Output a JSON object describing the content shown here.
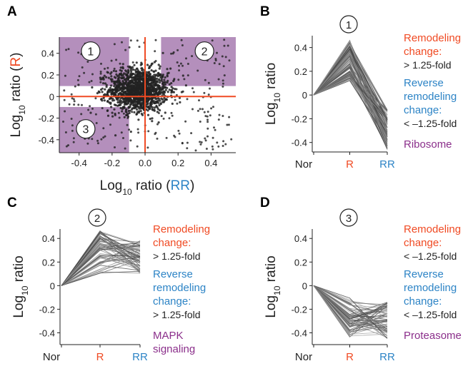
{
  "colors": {
    "red": "#f04a23",
    "blue": "#2d84c6",
    "purple": "#8b2f8b",
    "shade": "#a77bb0",
    "line": "#333333",
    "point": "#222222"
  },
  "chart_data": [
    {
      "panel": "A",
      "type": "scatter",
      "xlabel_prefix": "Log",
      "xlabel_sub": "10",
      "xlabel_ratio": " ratio (",
      "xlabel_key": "RR",
      "xlabel_close": ")",
      "ylabel_prefix": "Log",
      "ylabel_sub": "10",
      "ylabel_ratio": " ratio (",
      "ylabel_key": "R",
      "ylabel_close": ")",
      "xlim": [
        -0.52,
        0.55
      ],
      "ylim": [
        -0.52,
        0.55
      ],
      "xticks": [
        "-0.4",
        "-0.2",
        "0.0",
        "0.2",
        "0.4"
      ],
      "yticks": [
        "0.4",
        "0.2",
        "0",
        "-0.2",
        "-0.4"
      ],
      "xtick_values": [
        -0.4,
        -0.2,
        0.0,
        0.2,
        0.4
      ],
      "ytick_values": [
        0.4,
        0.2,
        0,
        -0.2,
        -0.4
      ],
      "thresholds": [
        -0.097,
        0.097
      ],
      "regions": [
        {
          "label": "1",
          "x": [
            -0.52,
            -0.097
          ],
          "y": [
            0.097,
            0.55
          ]
        },
        {
          "label": "2",
          "x": [
            0.097,
            0.55
          ],
          "y": [
            0.097,
            0.55
          ]
        },
        {
          "label": "3",
          "x": [
            -0.52,
            -0.097
          ],
          "y": [
            -0.52,
            -0.097
          ]
        }
      ],
      "region_labels": [
        "1",
        "2",
        "3"
      ],
      "region_label_pos": [
        [
          -0.33,
          0.42
        ],
        [
          0.36,
          0.42
        ],
        [
          -0.36,
          -0.3
        ]
      ],
      "cluster_count": 1400,
      "outer_count": 260,
      "cluster_sigma": [
        0.09,
        0.1
      ]
    },
    {
      "panel": "B",
      "type": "line",
      "region": "1",
      "categories": [
        "Nor",
        "R",
        "RR"
      ],
      "ylabel_prefix": "Log",
      "ylabel_sub": "10",
      "ylabel_ratio": " ratio",
      "ylim": [
        -0.48,
        0.5
      ],
      "yticks": [
        "0.4",
        "0.2",
        "0",
        "-0.2",
        "-0.4"
      ],
      "ytick_values": [
        0.4,
        0.2,
        0,
        -0.2,
        -0.4
      ],
      "line_count": 90,
      "r_range": [
        0.1,
        0.46
      ],
      "rr_range": [
        -0.47,
        -0.12
      ],
      "legend": {
        "remodeling": [
          "Remodeling",
          "change:"
        ],
        "remodeling_fold": "> 1.25-fold",
        "reverse": [
          "Reverse",
          "remodeling",
          "change:"
        ],
        "reverse_fold": "< –1.25-fold",
        "pathway": [
          "Ribosome"
        ]
      }
    },
    {
      "panel": "C",
      "type": "line",
      "region": "2",
      "categories": [
        "Nor",
        "R",
        "RR"
      ],
      "ylabel_prefix": "Log",
      "ylabel_sub": "10",
      "ylabel_ratio": " ratio",
      "ylim": [
        -0.5,
        0.48
      ],
      "yticks": [
        "0.4",
        "0.2",
        "0",
        "-0.2",
        "-0.4"
      ],
      "ytick_values": [
        0.4,
        0.2,
        0,
        -0.2,
        -0.4
      ],
      "line_count": 60,
      "r_range": [
        0.1,
        0.47
      ],
      "rr_range": [
        0.1,
        0.38
      ],
      "legend": {
        "remodeling": [
          "Remodeling",
          "change:"
        ],
        "remodeling_fold": "> 1.25-fold",
        "reverse": [
          "Reverse",
          "remodeling",
          "change:"
        ],
        "reverse_fold": "> 1.25-fold",
        "pathway": [
          "MAPK",
          "signaling"
        ]
      }
    },
    {
      "panel": "D",
      "type": "line",
      "region": "3",
      "categories": [
        "Nor",
        "R",
        "RR"
      ],
      "ylabel_prefix": "Log",
      "ylabel_sub": "10",
      "ylabel_ratio": " ratio",
      "ylim": [
        -0.5,
        0.48
      ],
      "yticks": [
        "0.4",
        "0.2",
        "0",
        "-0.2",
        "-0.4"
      ],
      "ytick_values": [
        0.4,
        0.2,
        0,
        -0.2,
        -0.4
      ],
      "line_count": 60,
      "r_range": [
        -0.44,
        -0.1
      ],
      "rr_range": [
        -0.45,
        -0.13
      ],
      "legend": {
        "remodeling": [
          "Remodeling",
          "change:"
        ],
        "remodeling_fold": "< –1.25-fold",
        "reverse": [
          "Reverse",
          "remodeling",
          "change:"
        ],
        "reverse_fold": "< –1.25-fold",
        "pathway": [
          "Proteasome"
        ]
      }
    }
  ]
}
